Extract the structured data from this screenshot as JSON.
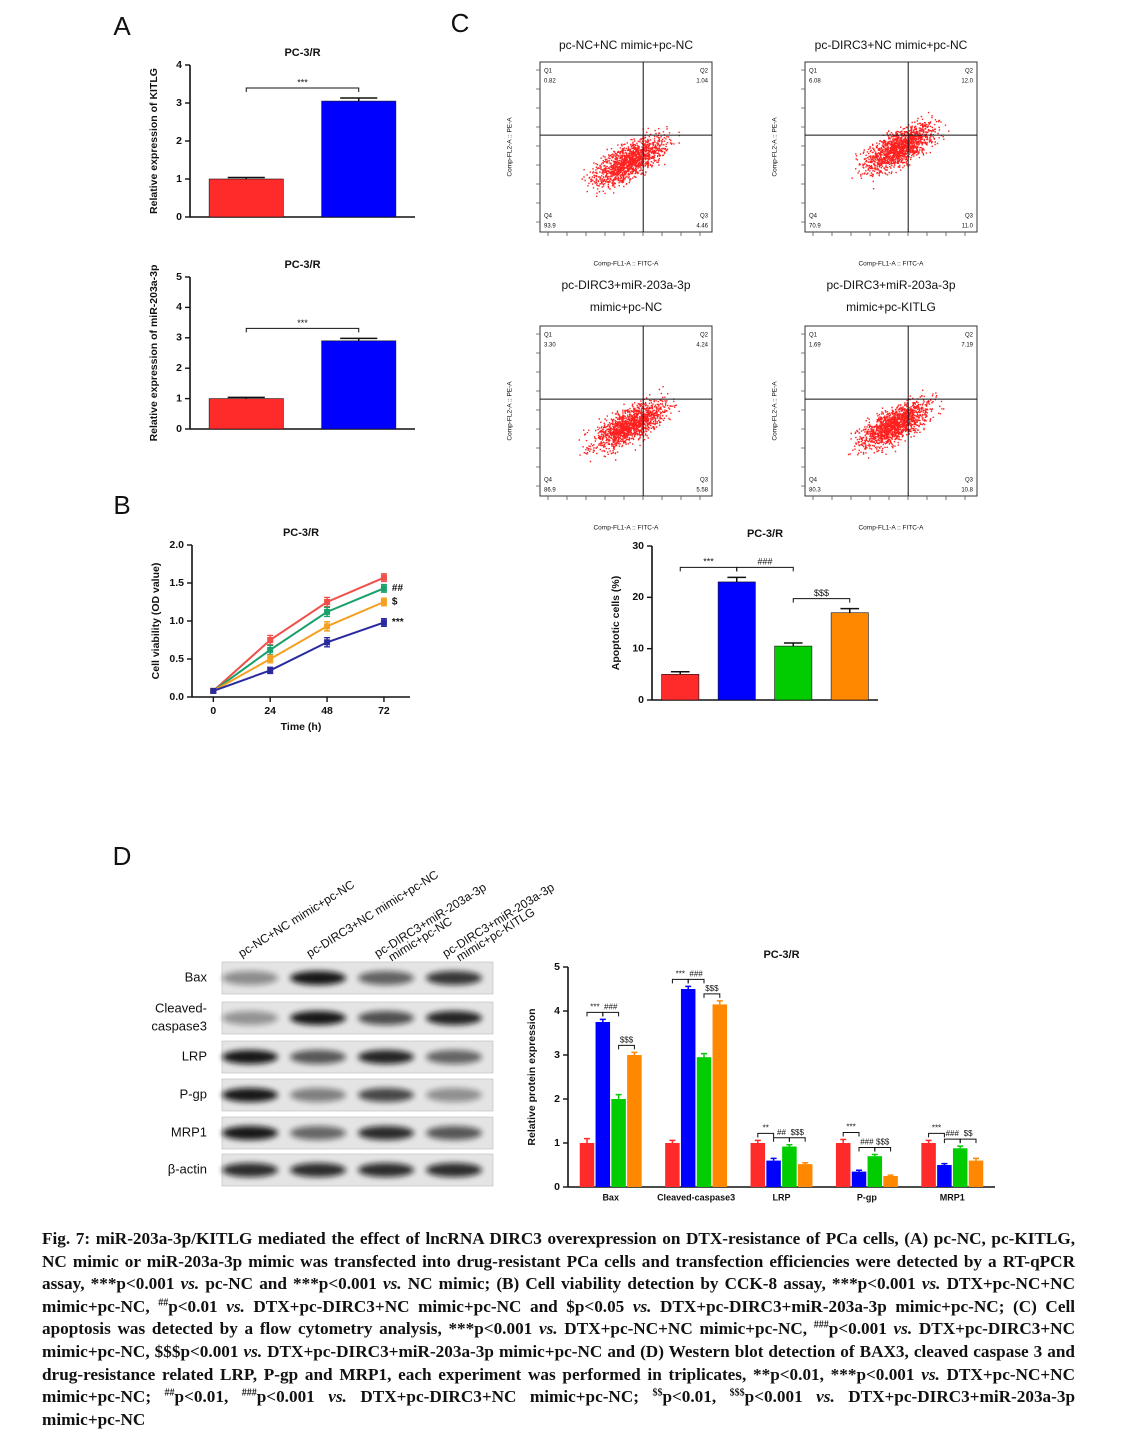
{
  "panel_letters": [
    "A",
    "B",
    "C",
    "D"
  ],
  "chart_data": [
    {
      "type": "bar",
      "title": "PC-3/R",
      "ylabel": "Relative expression of KITLG",
      "categories": [
        null,
        null
      ],
      "values": [
        1.0,
        3.05
      ],
      "errors": [
        0.04,
        0.08
      ],
      "colors": [
        "#ff2a2a",
        "#0000ff"
      ],
      "ylim": [
        0,
        4
      ],
      "yticks": [
        0,
        1,
        2,
        3,
        4
      ],
      "significance": [
        "***"
      ]
    },
    {
      "type": "bar",
      "title": "PC-3/R",
      "ylabel": "Relative expression of miR-203a-3p",
      "categories": [
        null,
        null
      ],
      "values": [
        1.0,
        2.9
      ],
      "errors": [
        0.04,
        0.08
      ],
      "colors": [
        "#ff2a2a",
        "#0000ff"
      ],
      "ylim": [
        0,
        5
      ],
      "yticks": [
        0,
        1,
        2,
        3,
        4,
        5
      ],
      "significance": [
        "***"
      ]
    },
    {
      "type": "line",
      "title": "PC-3/R",
      "xlabel": "Time (h)",
      "ylabel": "Cell viability (OD value)",
      "x": [
        0,
        24,
        48,
        72
      ],
      "xlim": [
        -9,
        83
      ],
      "xticks": [
        0,
        24,
        48,
        72
      ],
      "ylim": [
        0,
        2
      ],
      "yticks": [
        {
          "value": 0,
          "label": "0.0"
        },
        {
          "value": 0.5,
          "label": "0.5"
        },
        {
          "value": 1,
          "label": "1.0"
        },
        {
          "value": 1.5,
          "label": "1.5"
        },
        {
          "value": 2,
          "label": "2.0"
        }
      ],
      "series": [
        {
          "color": "#f0504a",
          "values": [
            0.08,
            0.75,
            1.25,
            1.57
          ],
          "errors": [
            0.02,
            0.06,
            0.06,
            0.05
          ]
        },
        {
          "color": "#1aa06a",
          "values": [
            0.08,
            0.62,
            1.12,
            1.43
          ],
          "errors": [
            0.02,
            0.06,
            0.06,
            0.05
          ],
          "end_label": "##"
        },
        {
          "color": "#f5a020",
          "values": [
            0.08,
            0.5,
            0.93,
            1.25
          ],
          "errors": [
            0.02,
            0.05,
            0.06,
            0.05
          ],
          "end_label": "$"
        },
        {
          "color": "#2a2aa0",
          "values": [
            0.08,
            0.35,
            0.72,
            0.98
          ],
          "errors": [
            0.02,
            0.04,
            0.06,
            0.05
          ],
          "end_label": "***"
        }
      ]
    },
    {
      "type": "bar",
      "title": "PC-3/R",
      "ylabel": "Apoptotic cells (%)",
      "categories": [
        null,
        null,
        null,
        null
      ],
      "values": [
        5,
        23,
        10.5,
        17
      ],
      "errors": [
        0.5,
        0.9,
        0.6,
        0.8
      ],
      "colors": [
        "#ff2a2a",
        "#0000ff",
        "#00cc00",
        "#ff8800"
      ],
      "ylim": [
        0,
        30
      ],
      "yticks": [
        0,
        10,
        20,
        30
      ],
      "significance": [
        "***",
        "###",
        "$$$"
      ]
    },
    {
      "type": "grouped_bar",
      "title": "PC-3/R",
      "ylabel": "Relative protein expression",
      "categories": [
        "Bax",
        "Cleaved-caspase3",
        "LRP",
        "P-gp",
        "MRP1"
      ],
      "ylim": [
        0,
        5
      ],
      "yticks": [
        0,
        1,
        2,
        3,
        4,
        5
      ],
      "series": [
        {
          "color": "#ff2a2a",
          "values": [
            1,
            1,
            1,
            1,
            1
          ],
          "errors": [
            0.1,
            0.06,
            0.06,
            0.08,
            0.06
          ]
        },
        {
          "color": "#0000ff",
          "values": [
            3.75,
            4.5,
            0.6,
            0.35,
            0.5
          ],
          "errors": [
            0.06,
            0.06,
            0.05,
            0.03,
            0.03
          ]
        },
        {
          "color": "#00cc00",
          "values": [
            2.0,
            2.95,
            0.92,
            0.7,
            0.88
          ],
          "errors": [
            0.1,
            0.08,
            0.04,
            0.04,
            0.05
          ]
        },
        {
          "color": "#ff8800",
          "values": [
            3.0,
            4.15,
            0.52,
            0.25,
            0.6
          ],
          "errors": [
            0.06,
            0.08,
            0.03,
            0.02,
            0.05
          ]
        }
      ],
      "significance": [
        [
          "***",
          "###",
          "$$$"
        ],
        [
          "***",
          "###",
          "$$$"
        ],
        [
          "**",
          "##",
          "$$$"
        ],
        [
          "***",
          "###",
          "$$$"
        ],
        [
          "***",
          "###",
          "$$"
        ]
      ]
    }
  ],
  "flow": {
    "xlabel": "Comp-FL1-A :: FITC-A",
    "ylabel": "Comp-FL2-A :: PE-A",
    "quadrants": [
      "Q1",
      "Q2",
      "Q3",
      "Q4"
    ],
    "panels": [
      {
        "title": [
          "pc-NC+NC mimic+pc-NC"
        ],
        "q1": "0.82",
        "q2": "1.04",
        "q3": "4.46",
        "q4": "93.9"
      },
      {
        "title": [
          "pc-DIRC3+NC mimic+pc-NC"
        ],
        "q1": "6.08",
        "q2": "12.0",
        "q3": "11.0",
        "q4": "70.9"
      },
      {
        "title": [
          "pc-DIRC3+miR-203a-3p",
          "mimic+pc-NC"
        ],
        "q1": "3.30",
        "q2": "4.24",
        "q3": "5.58",
        "q4": "86.9"
      },
      {
        "title": [
          "pc-DIRC3+miR-203a-3p",
          "mimic+pc-KITLG"
        ],
        "q1": "1.69",
        "q2": "7.19",
        "q3": "10.8",
        "q4": "80.3"
      }
    ]
  },
  "blot": {
    "lanes": [
      [
        "pc-NC+NC mimic+pc-NC"
      ],
      [
        "pc-DIRC3+NC mimic+pc-NC"
      ],
      [
        "pc-DIRC3+miR-203a-3p",
        "mimic+pc-NC"
      ],
      [
        "pc-DIRC3+miR-203a-3p",
        "mimic+pc-KITLG"
      ]
    ],
    "rows": [
      [
        "Bax"
      ],
      [
        "Cleaved-",
        "caspase3"
      ],
      [
        "LRP"
      ],
      [
        "P-gp"
      ],
      [
        "MRP1"
      ],
      [
        "β-actin"
      ]
    ]
  },
  "caption": [
    {
      "text": "Fig. 7: miR-203a-3p/KITLG mediated the effect of lncRNA DIRC3 overexpression on DTX-resistance of PCa cells, (A) pc-NC, pc-KITLG, NC mimic or miR-203a-3p mimic was transfected into drug-resistant PCa cells and transfection efficiencies were detected by a RT-qPCR assay, ***p<0.001 ",
      "format": "normal"
    },
    {
      "text": "vs.",
      "format": "italic"
    },
    {
      "text": " pc-NC and ***p<0.001 ",
      "format": "normal"
    },
    {
      "text": "vs.",
      "format": "italic"
    },
    {
      "text": " NC mimic; (B) Cell viability detection by CCK-8 assay, ***p<0.001 ",
      "format": "normal"
    },
    {
      "text": "vs.",
      "format": "italic"
    },
    {
      "text": " DTX+pc-NC+NC mimic+pc-NC, ",
      "format": "normal"
    },
    {
      "text": "##",
      "format": "superscript"
    },
    {
      "text": "p<0.01 ",
      "format": "normal"
    },
    {
      "text": "vs.",
      "format": "italic"
    },
    {
      "text": " DTX+pc-DIRC3+NC mimic+pc-NC and $p<0.05 ",
      "format": "normal"
    },
    {
      "text": "vs.",
      "format": "italic"
    },
    {
      "text": " DTX+pc-DIRC3+miR-203a-3p mimic+pc-NC; (C) Cell apoptosis was detected by a flow cytometry analysis, ***p<0.001 ",
      "format": "normal"
    },
    {
      "text": "vs.",
      "format": "italic"
    },
    {
      "text": " DTX+pc-NC+NC mimic+pc-NC, ",
      "format": "normal"
    },
    {
      "text": "###",
      "format": "superscript"
    },
    {
      "text": "p<0.001 ",
      "format": "normal"
    },
    {
      "text": "vs.",
      "format": "italic"
    },
    {
      "text": " DTX+pc-DIRC3+NC mimic+pc-NC, $$$p<0.001 ",
      "format": "normal"
    },
    {
      "text": "vs.",
      "format": "italic"
    },
    {
      "text": " DTX+pc-DIRC3+miR-203a-3p mimic+pc-NC and (D) Western blot detection of BAX3, cleaved caspase 3 and drug-resistance related LRP, P-gp and MRP1, each experiment was performed in triplicates, **p<0.01, ***p<0.001 ",
      "format": "normal"
    },
    {
      "text": "vs.",
      "format": "italic"
    },
    {
      "text": " DTX+pc-NC+NC mimic+pc-NC; ",
      "format": "normal"
    },
    {
      "text": "##",
      "format": "superscript"
    },
    {
      "text": "p<0.01, ",
      "format": "normal"
    },
    {
      "text": "###",
      "format": "superscript"
    },
    {
      "text": "p<0.001 ",
      "format": "normal"
    },
    {
      "text": "vs.",
      "format": "italic"
    },
    {
      "text": " DTX+pc-DIRC3+NC mimic+pc-NC; ",
      "format": "normal"
    },
    {
      "text": "$$",
      "format": "superscript"
    },
    {
      "text": "p<0.01, ",
      "format": "normal"
    },
    {
      "text": "$$$",
      "format": "superscript"
    },
    {
      "text": "p<0.001 ",
      "format": "normal"
    },
    {
      "text": "vs.",
      "format": "italic"
    },
    {
      "text": " DTX+pc-DIRC3+miR-203a-3p mimic+pc-NC",
      "format": "normal"
    }
  ]
}
